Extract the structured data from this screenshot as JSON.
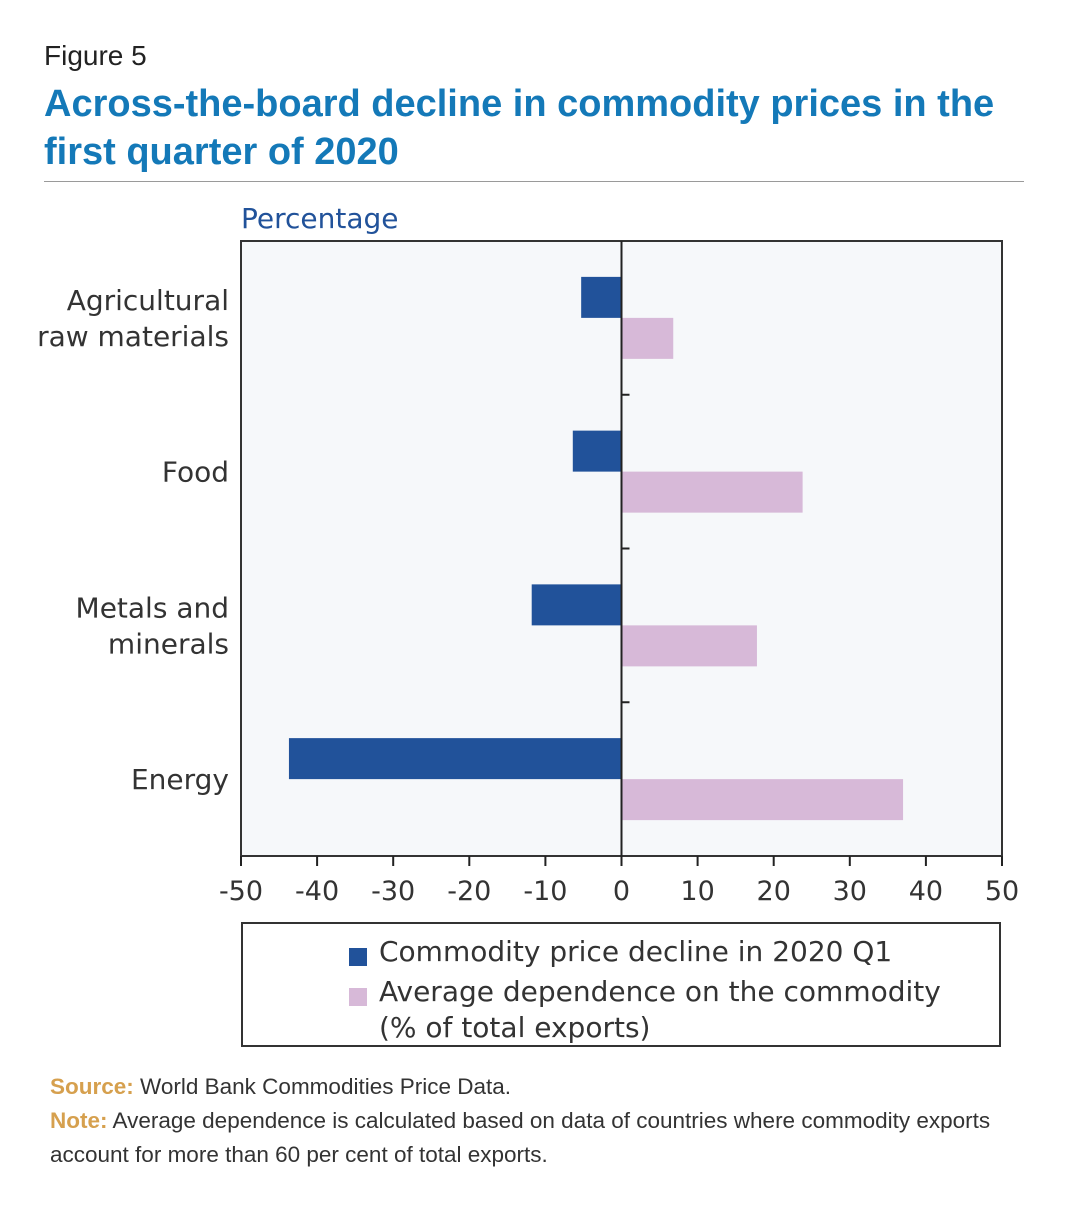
{
  "figure_label": "Figure 5",
  "title": "Across-the-board decline in commodity prices in the first quarter of 2020",
  "source_label": "Source:",
  "source_text": "World Bank Commodities Price Data.",
  "note_label": "Note:",
  "note_text": "Average dependence is calculated based on data of countries where commodity exports account for more than 60 per cent of total exports.",
  "colors": {
    "series1": "#21529a",
    "series2": "#d7b9d8",
    "title": "#1479b8",
    "label_key": "#d6a04e"
  },
  "chart_data": {
    "type": "bar",
    "orientation": "horizontal",
    "ylabel": "Percentage",
    "categories": [
      "Agricultural\nraw materials",
      "Food",
      "Metals and\nminerals",
      "Energy"
    ],
    "series": [
      {
        "name": "Commodity price decline in 2020 Q1",
        "values": [
          -5.3,
          -6.4,
          -11.8,
          -43.7
        ]
      },
      {
        "name": "Average dependence on the commodity\n(% of total exports)",
        "values": [
          6.8,
          23.8,
          17.8,
          37.0
        ]
      }
    ],
    "xlim": [
      -50,
      50
    ],
    "xticks": [
      -50,
      -40,
      -30,
      -20,
      -10,
      0,
      10,
      20,
      30,
      40,
      50
    ],
    "legend_position": "bottom",
    "grid": false
  }
}
